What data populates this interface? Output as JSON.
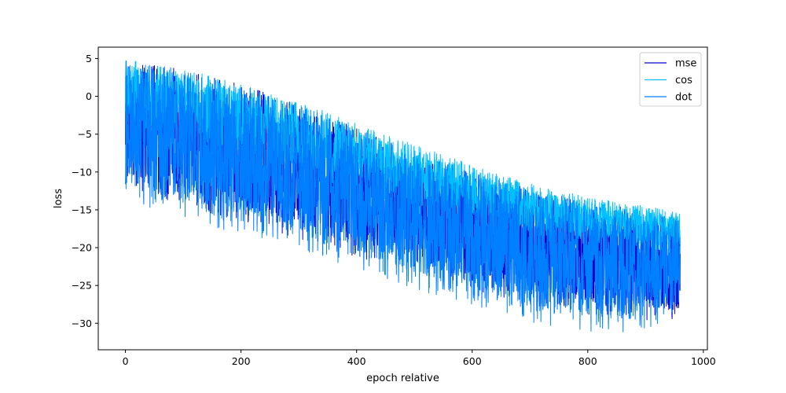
{
  "chart_data": {
    "type": "line",
    "title": "",
    "xlabel": "epoch relative",
    "ylabel": "loss",
    "xlim": [
      -47,
      1007
    ],
    "ylim": [
      -33.5,
      6.5
    ],
    "x_ticks": [
      0,
      200,
      400,
      600,
      800,
      1000
    ],
    "x_tick_labels": [
      "0",
      "200",
      "400",
      "600",
      "800",
      "1000"
    ],
    "y_ticks": [
      5,
      0,
      -5,
      -10,
      -15,
      -20,
      -25,
      -30
    ],
    "y_tick_labels": [
      "5",
      "0",
      "−5",
      "−10",
      "−15",
      "−20",
      "−25",
      "−30"
    ],
    "grid": false,
    "legend_position": "top-right",
    "series": [
      {
        "name": "mse",
        "color": "#0000cd",
        "x": [
          0,
          80,
          160,
          240,
          320,
          400,
          480,
          560,
          640,
          720,
          800,
          880,
          960
        ],
        "upper": [
          4.8,
          3.8,
          2.4,
          0.6,
          -1.6,
          -4.0,
          -6.6,
          -8.8,
          -10.8,
          -12.6,
          -13.8,
          -15.0,
          -16.0
        ],
        "lower": [
          -12.5,
          -14.0,
          -15.8,
          -17.5,
          -19.2,
          -21.2,
          -23.0,
          -24.8,
          -26.5,
          -27.8,
          -28.8,
          -29.5,
          -30.0
        ]
      },
      {
        "name": "cos",
        "color": "#00bfff",
        "x": [
          0,
          80,
          160,
          240,
          320,
          400,
          480,
          560,
          640,
          720,
          800,
          880,
          960
        ],
        "upper": [
          4.9,
          3.9,
          2.5,
          0.7,
          -1.2,
          -3.6,
          -5.8,
          -8.0,
          -10.2,
          -11.9,
          -13.2,
          -14.3,
          -15.2
        ],
        "lower": [
          -3.5,
          -5.0,
          -6.5,
          -8.5,
          -10.5,
          -12.5,
          -14.5,
          -16.0,
          -17.5,
          -18.5,
          -19.5,
          -20.0,
          -20.5
        ]
      },
      {
        "name": "dot",
        "color": "#0080ff",
        "x": [
          0,
          80,
          160,
          240,
          320,
          400,
          480,
          560,
          640,
          720,
          800,
          880,
          960
        ],
        "upper": [
          4.8,
          3.8,
          2.4,
          0.5,
          -1.8,
          -4.3,
          -7.0,
          -9.2,
          -11.2,
          -13.0,
          -14.2,
          -15.4,
          -16.2
        ],
        "lower": [
          -14.0,
          -15.5,
          -17.5,
          -19.0,
          -20.8,
          -22.8,
          -25.0,
          -26.8,
          -28.8,
          -30.2,
          -31.2,
          -31.5,
          -29.0
        ]
      }
    ]
  }
}
